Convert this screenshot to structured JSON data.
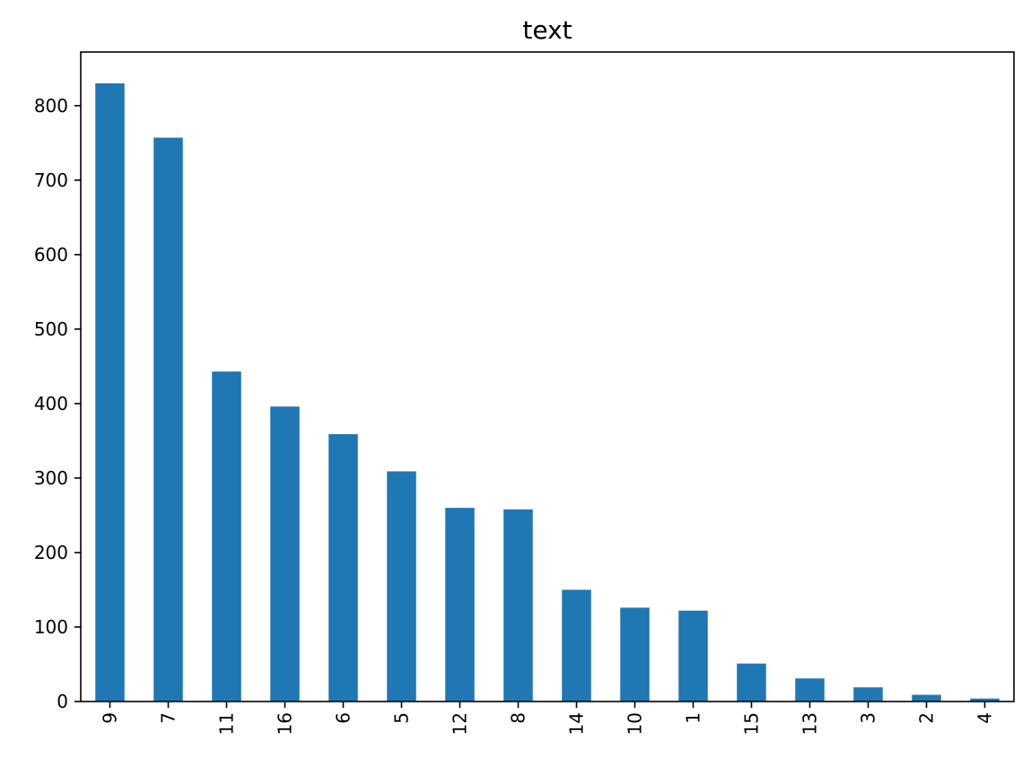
{
  "chart_data": {
    "type": "bar",
    "title": "text",
    "xlabel": "",
    "ylabel": "",
    "categories": [
      "9",
      "7",
      "11",
      "16",
      "6",
      "5",
      "12",
      "8",
      "14",
      "10",
      "1",
      "15",
      "13",
      "3",
      "2",
      "4"
    ],
    "values": [
      830,
      757,
      443,
      396,
      359,
      309,
      260,
      258,
      150,
      126,
      122,
      51,
      31,
      19,
      9,
      4
    ],
    "ylim": [
      0,
      872
    ],
    "yticks": [
      0,
      100,
      200,
      300,
      400,
      500,
      600,
      700,
      800
    ],
    "grid": false,
    "legend": "none",
    "bar_color": "#1f77b4"
  }
}
